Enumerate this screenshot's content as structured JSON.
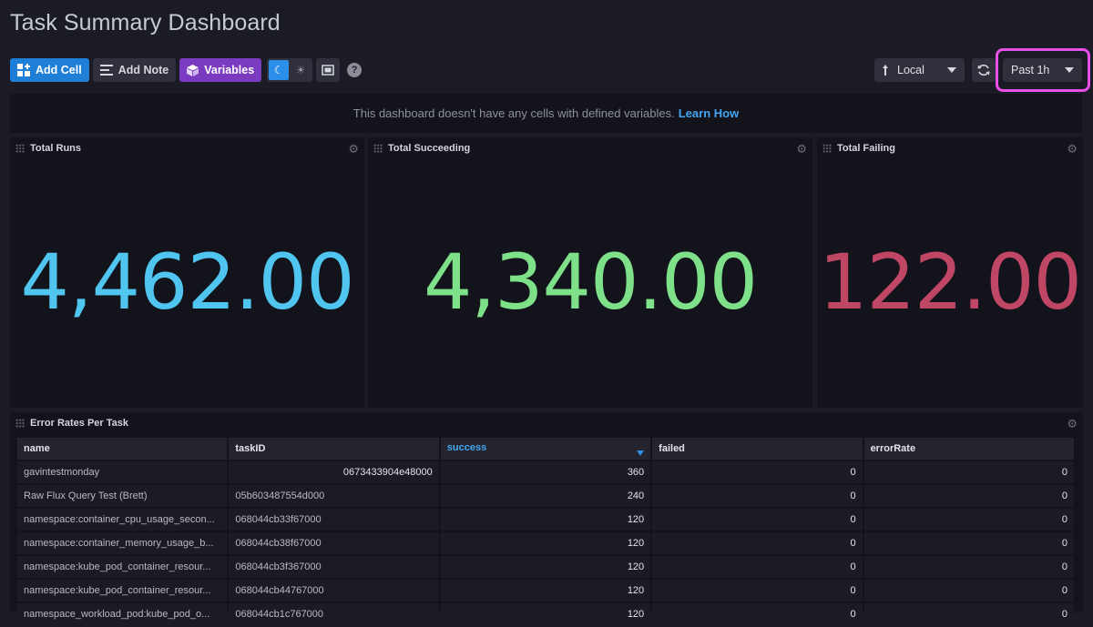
{
  "page": {
    "title": "Task Summary Dashboard"
  },
  "toolbar": {
    "add_cell": "Add Cell",
    "add_note": "Add Note",
    "variables": "Variables",
    "help": "?",
    "timezone": "Local",
    "time_range": "Past 1h"
  },
  "notice": {
    "text": "This dashboard doesn't have any cells with defined variables.",
    "link": "Learn How"
  },
  "cells": [
    {
      "title": "Total Runs",
      "value": "4,462.00",
      "color": "#4fc5f0"
    },
    {
      "title": "Total Succeeding",
      "value": "4,340.00",
      "color": "#7fe08a"
    },
    {
      "title": "Total Failing",
      "value": "122.00",
      "color": "#bf4664"
    }
  ],
  "table": {
    "title": "Error Rates Per Task",
    "columns": [
      "name",
      "taskID",
      "success",
      "failed",
      "errorRate"
    ],
    "sorted_column": "success",
    "rows": [
      [
        "gavintestmonday",
        "0673433904e48000",
        "360",
        "0",
        "0"
      ],
      [
        "Raw Flux Query Test (Brett)",
        "05b603487554d000",
        "240",
        "0",
        "0"
      ],
      [
        "namespace:container_cpu_usage_secon...",
        "068044cb33f67000",
        "120",
        "0",
        "0"
      ],
      [
        "namespace:container_memory_usage_b...",
        "068044cb38f67000",
        "120",
        "0",
        "0"
      ],
      [
        "namespace:kube_pod_container_resour...",
        "068044cb3f367000",
        "120",
        "0",
        "0"
      ],
      [
        "namespace:kube_pod_container_resour...",
        "068044cb44767000",
        "120",
        "0",
        "0"
      ],
      [
        "namespace_workload_pod:kube_pod_o...",
        "068044cb1c767000",
        "120",
        "0",
        "0"
      ]
    ]
  }
}
